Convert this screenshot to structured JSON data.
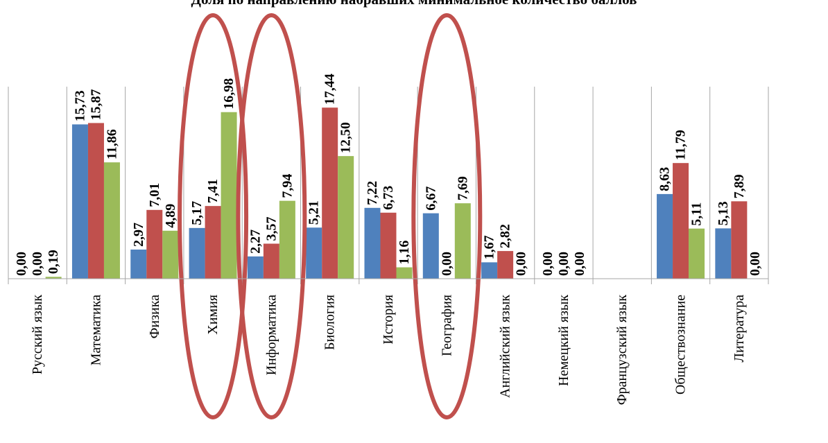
{
  "chart_data": {
    "type": "bar",
    "title": "Доля по направлению набравших минимальное количество баллов",
    "xlabel": "",
    "ylabel": "",
    "ylim": [
      0,
      20
    ],
    "grid": false,
    "legend": "none",
    "categories": [
      "Русский язык",
      "Математика",
      "Физика",
      "Химия",
      "Информатика",
      "Биология",
      "История",
      "География",
      "Английский язык",
      "Немецкий язык",
      "Французский язык",
      "Обществознание",
      "Литература"
    ],
    "series": [
      {
        "color": "#4F81BD",
        "values": [
          0.0,
          15.73,
          2.97,
          5.17,
          2.27,
          5.21,
          7.22,
          6.67,
          1.67,
          0.0,
          null,
          8.63,
          5.13
        ]
      },
      {
        "color": "#C0504D",
        "values": [
          0.0,
          15.87,
          7.01,
          7.41,
          3.57,
          17.44,
          6.73,
          0.0,
          2.82,
          0.0,
          null,
          11.79,
          7.89
        ]
      },
      {
        "color": "#9BBB59",
        "values": [
          0.19,
          11.86,
          4.89,
          16.98,
          7.94,
          12.5,
          1.16,
          7.69,
          0.0,
          0.0,
          null,
          5.11,
          0.0
        ]
      }
    ],
    "highlighted_categories": [
      "Химия",
      "Информатика",
      "География"
    ],
    "highlight_color": "#C0504D"
  }
}
